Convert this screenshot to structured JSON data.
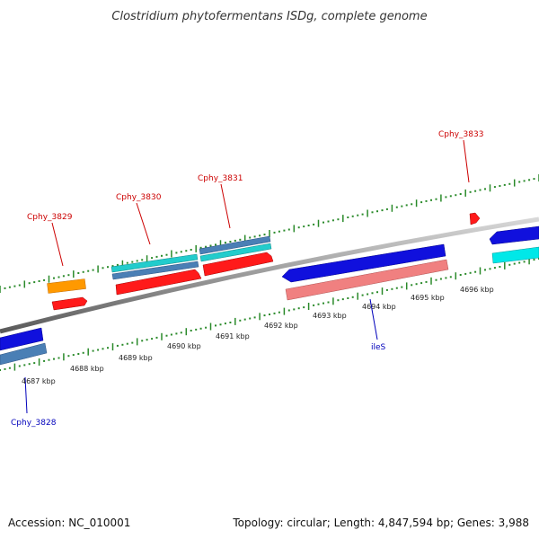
{
  "title": "Clostridium phytofermentans ISDg, complete genome",
  "footer": {
    "accession": "Accession: NC_010001",
    "summary": "Topology: circular; Length: 4,847,594 bp; Genes: 3,988"
  },
  "colors": {
    "backbone": "#8a8a8a",
    "tick": "#2a8a2a",
    "forward_label": "#cc0000",
    "reverse_label": "#0000bb",
    "gene_red": "#ff0000",
    "gene_orange": "#ff9900",
    "gene_cyan": "#22cccc",
    "gene_steelblue": "#4a7fb5",
    "gene_blue": "#1010dd",
    "gene_pink": "#f08080"
  },
  "scale": {
    "unit": "kbp",
    "tick_labels": [
      "4687 kbp",
      "4688 kbp",
      "4689 kbp",
      "4690 kbp",
      "4691 kbp",
      "4692 kbp",
      "4693 kbp",
      "4694 kbp",
      "4695 kbp",
      "4696 kbp"
    ]
  },
  "gene_labels": [
    {
      "name": "Cphy_3829",
      "strand": "forward"
    },
    {
      "name": "Cphy_3830",
      "strand": "forward"
    },
    {
      "name": "Cphy_3831",
      "strand": "forward"
    },
    {
      "name": "Cphy_3833",
      "strand": "forward"
    },
    {
      "name": "Cphy_3828",
      "strand": "reverse"
    },
    {
      "name": "ileS",
      "strand": "reverse"
    }
  ]
}
